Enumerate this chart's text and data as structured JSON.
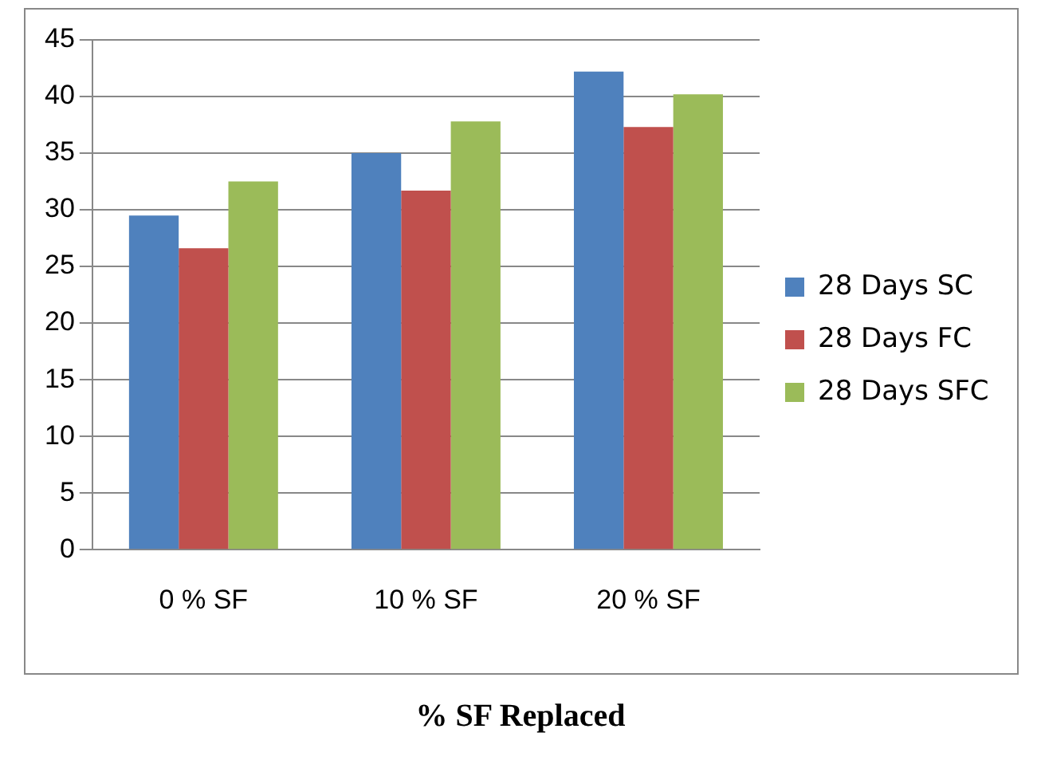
{
  "chart_data": {
    "type": "bar",
    "xlabel": "% SF Replaced",
    "categories": [
      "0 % SF",
      "10 % SF",
      "20 % SF"
    ],
    "series": [
      {
        "name": "28 Days SC",
        "color": "#4f81bd",
        "values": [
          29.5,
          35,
          42.2
        ]
      },
      {
        "name": "28 Days FC",
        "color": "#c0504d",
        "values": [
          26.6,
          31.7,
          37.3
        ]
      },
      {
        "name": "28 Days SFC",
        "color": "#9bbb59",
        "values": [
          32.5,
          37.8,
          40.2
        ]
      }
    ],
    "ylim": [
      0,
      45
    ],
    "yticks": [
      0,
      5,
      10,
      15,
      20,
      25,
      30,
      35,
      40,
      45
    ],
    "grid": "y",
    "legend": "right"
  }
}
